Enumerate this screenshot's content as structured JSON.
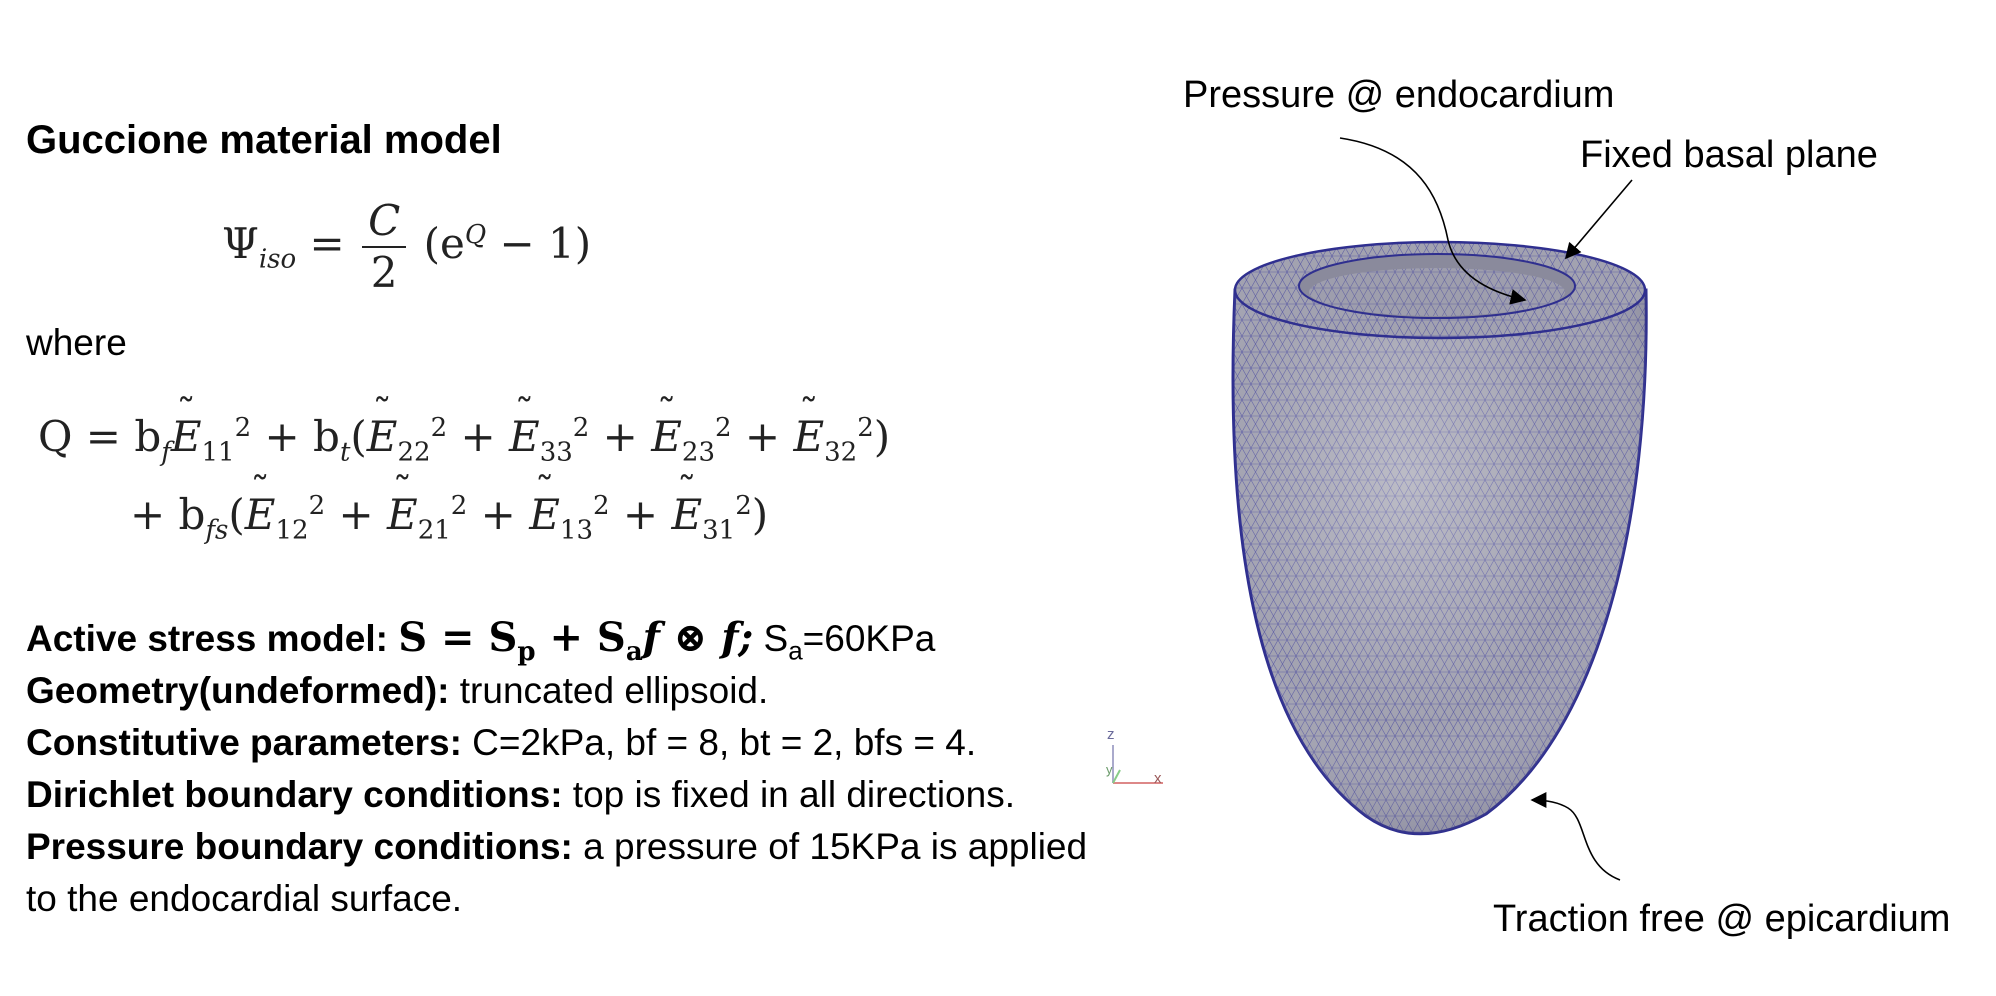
{
  "left": {
    "title": "Guccione material model",
    "where": "where",
    "equation1": {
      "lhs": "Ψ",
      "lhs_sub": "iso",
      "num": "C",
      "den": "2",
      "tail": "(e",
      "tail_sup": "Q",
      "tail_end": " − 1)"
    },
    "equation2": {
      "line1_lhs": "Q = b",
      "line1_lhs_sub": "f",
      "line1_rest": "+ b",
      "line1_rest_sub": "t",
      "line2_lead": "+ b",
      "line2_lead_sub": "fs",
      "line1_terms": [
        "11"
      ],
      "line1_paren_terms": [
        "22",
        "33",
        "23",
        "32"
      ],
      "line2_paren_terms": [
        "12",
        "21",
        "13",
        "31"
      ]
    },
    "specs": {
      "active_label": "Active stress model:",
      "active_formula": "S = S",
      "active_sub_p": "p",
      "active_plus": " + S",
      "active_sub_a": "a",
      "active_tail": "f ⊗ f;",
      "active_sa": "S",
      "active_sa_sub": "a",
      "active_value": "=60KPa",
      "geometry_label": "Geometry(undeformed):",
      "geometry_value": " truncated ellipsoid.",
      "constitutive_label": "Constitutive parameters:",
      "constitutive_value": " C=2kPa, bf = 8, bt = 2, bfs = 4.",
      "dirichlet_label": "Dirichlet boundary conditions:",
      "dirichlet_value": " top is fixed in all directions.",
      "pressure_label": "Pressure boundary conditions:",
      "pressure_value": " a pressure of 15KPa is applied",
      "pressure_value_line2": "to the endocardial surface."
    }
  },
  "axes_triad": {
    "z": "z",
    "y": "y",
    "x": "x"
  },
  "figure": {
    "label_endocardium": "Pressure @ endocardium",
    "label_basal": "Fixed basal plane",
    "label_epicardium": "Traction free @ epicardium",
    "mesh_fill": "#9b9bac",
    "mesh_line": "#3a3a9a"
  }
}
